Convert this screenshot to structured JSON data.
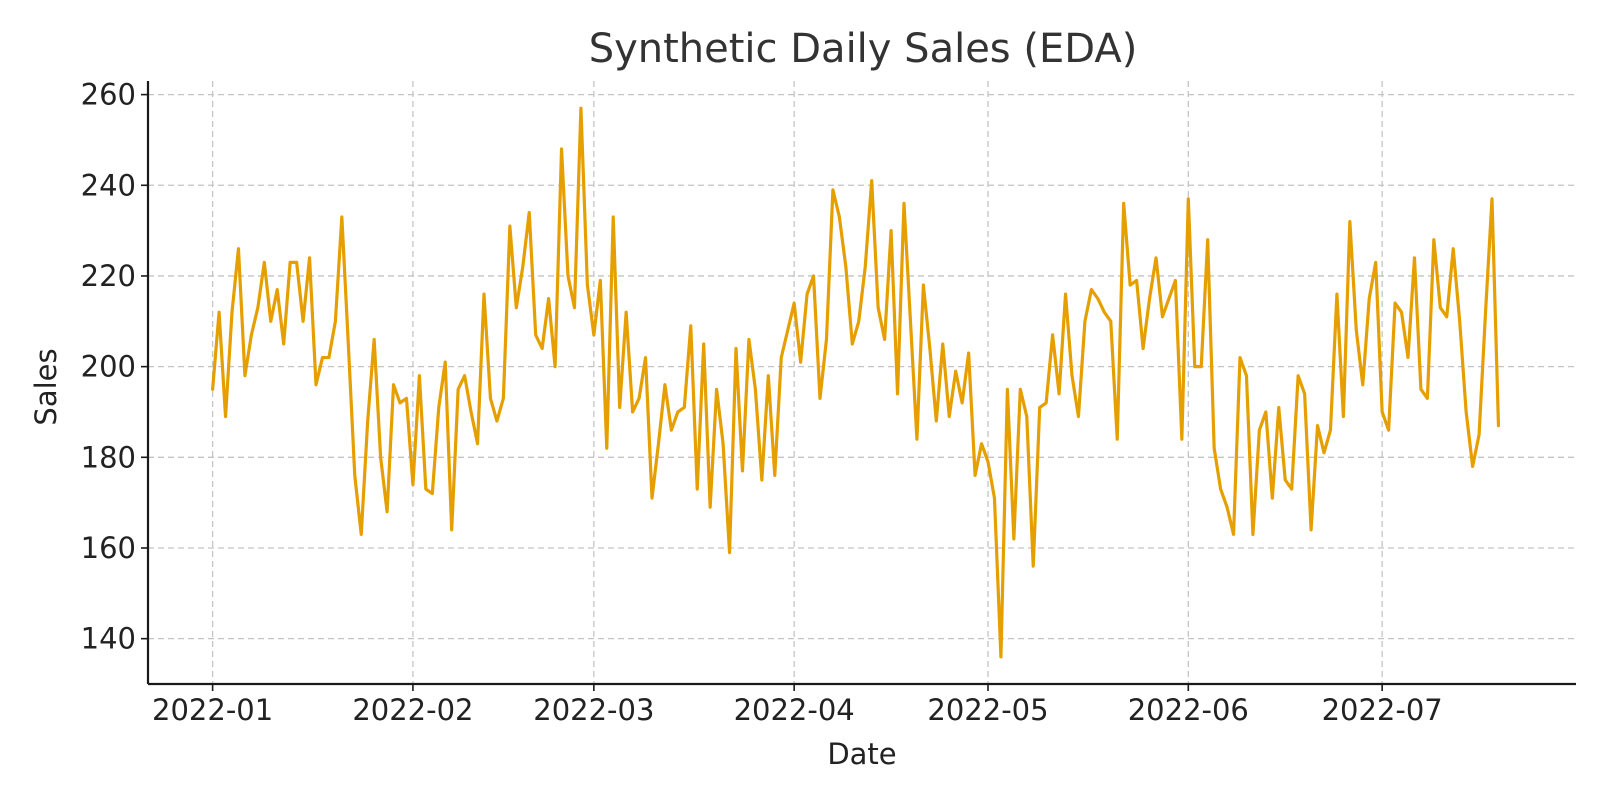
{
  "chart_data": {
    "type": "line",
    "title": "Synthetic Daily Sales (EDA)",
    "xlabel": "Date",
    "ylabel": "Sales",
    "ylim": [
      130,
      263
    ],
    "xlim": [
      "2021-12-22",
      "2022-07-31"
    ],
    "grid": true,
    "legend": "none",
    "color": "#E69F00",
    "x_ticks": [
      "2022-01",
      "2022-02",
      "2022-03",
      "2022-04",
      "2022-05",
      "2022-06",
      "2022-07"
    ],
    "y_ticks": [
      140,
      160,
      180,
      200,
      220,
      240,
      260
    ],
    "start_date": "2022-01-01",
    "series": [
      {
        "values": [
          195,
          212,
          189,
          212,
          226,
          198,
          207,
          213,
          223,
          210,
          217,
          205,
          223,
          223,
          210,
          224,
          196,
          202,
          202,
          210,
          233,
          205,
          176,
          163,
          188,
          206,
          180,
          168,
          196,
          192,
          193,
          174,
          198,
          173,
          172,
          191,
          201,
          164,
          195,
          198,
          190,
          183,
          216,
          193,
          188,
          193,
          231,
          213,
          222,
          234,
          207,
          204,
          215,
          200,
          248,
          220,
          213,
          257,
          218,
          207,
          219,
          182,
          233,
          191,
          212,
          190,
          193,
          202,
          171,
          183,
          196,
          186,
          190,
          191,
          209,
          173,
          205,
          169,
          195,
          183,
          159,
          204,
          177,
          206,
          195,
          175,
          198,
          176,
          202,
          208,
          214,
          201,
          216,
          220,
          193,
          206,
          239,
          233,
          222,
          205,
          210,
          222,
          241,
          213,
          206,
          230,
          194,
          236,
          210,
          184,
          218,
          204,
          188,
          205,
          189,
          199,
          192,
          203,
          176,
          183,
          179,
          171,
          136,
          195,
          162,
          195,
          189,
          156,
          191,
          192,
          207,
          194,
          216,
          198,
          189,
          210,
          217,
          215,
          212,
          210,
          184,
          236,
          218,
          219,
          204,
          215,
          224,
          211,
          215,
          219,
          184,
          237,
          200,
          200,
          228,
          182,
          173,
          169,
          163,
          202,
          198,
          163,
          186,
          190,
          171,
          191,
          175,
          173,
          198,
          194,
          164,
          187,
          181,
          186,
          216,
          189,
          232,
          208,
          196,
          215,
          223,
          190,
          186,
          214,
          212,
          202,
          224,
          195,
          193,
          228,
          213,
          211,
          226,
          210,
          190,
          178,
          185,
          212,
          237,
          187
        ]
      }
    ]
  }
}
